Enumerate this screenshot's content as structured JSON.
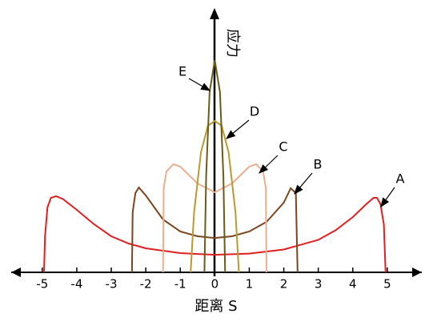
{
  "chart_data": {
    "type": "line",
    "x_label": "距离 S",
    "y_label": "应力",
    "xlim": [
      -5.9,
      6
    ],
    "ylim": [
      0,
      10
    ],
    "xticks": [
      -5,
      -4,
      -3,
      -2,
      -1,
      0,
      1,
      2,
      3,
      4,
      5
    ],
    "series": [
      {
        "name": "A",
        "color": "#e02020",
        "x": [
          -4.95,
          -4.92,
          -4.85,
          -4.75,
          -4.6,
          -4.4,
          -4.0,
          -3.5,
          -3.0,
          -2.5,
          -2.0,
          -1.0,
          0,
          1.0,
          2.0,
          3.0,
          3.5,
          4.0,
          4.4,
          4.6,
          4.7,
          4.8,
          4.9,
          4.95
        ],
        "values": [
          0,
          1.5,
          2.7,
          3.1,
          3.17,
          3.05,
          2.6,
          2.0,
          1.5,
          1.2,
          1.0,
          0.8,
          0.73,
          0.78,
          0.95,
          1.35,
          1.75,
          2.3,
          2.85,
          3.1,
          3.1,
          2.85,
          2.0,
          0
        ]
      },
      {
        "name": "B",
        "color": "#7a4520",
        "x": [
          -2.4,
          -2.38,
          -2.3,
          -2.2,
          -2.0,
          -1.5,
          -1.0,
          -0.5,
          0,
          0.5,
          1.0,
          1.5,
          2.0,
          2.2,
          2.35,
          2.4
        ],
        "values": [
          0,
          2.5,
          3.3,
          3.53,
          3.2,
          2.2,
          1.7,
          1.5,
          1.43,
          1.5,
          1.7,
          2.1,
          2.9,
          3.5,
          3.3,
          0
        ]
      },
      {
        "name": "C",
        "color": "#e8b090",
        "x": [
          -1.5,
          -1.48,
          -1.4,
          -1.2,
          -1.0,
          -0.5,
          0,
          0.5,
          1.0,
          1.2,
          1.4,
          1.48,
          1.5
        ],
        "values": [
          0,
          3.5,
          4.2,
          4.5,
          4.4,
          3.7,
          3.33,
          3.7,
          4.4,
          4.5,
          4.2,
          3.5,
          0
        ]
      },
      {
        "name": "D",
        "color": "#b89a30",
        "x": [
          -0.7,
          -0.6,
          -0.4,
          -0.2,
          0,
          0.2,
          0.4,
          0.6,
          0.7
        ],
        "values": [
          0,
          2.5,
          5.0,
          6.1,
          6.3,
          6.1,
          5.0,
          2.5,
          0
        ]
      },
      {
        "name": "E",
        "color": "#6b5a1a",
        "x": [
          -0.3,
          -0.25,
          -0.15,
          0,
          0.15,
          0.25,
          0.3
        ],
        "values": [
          0,
          4.0,
          7.5,
          8.83,
          7.5,
          4.0,
          0
        ]
      }
    ]
  }
}
